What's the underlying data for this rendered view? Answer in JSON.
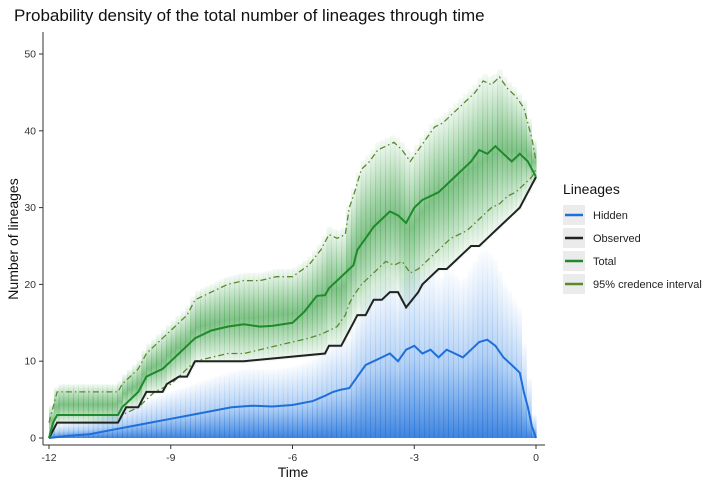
{
  "chart_data": {
    "type": "line",
    "title": "Probability density of the total number of lineages through time",
    "xlabel": "Time",
    "ylabel": "Number of lineages",
    "xlim": [
      -12,
      0
    ],
    "ylim": [
      0,
      50
    ],
    "x_ticks": [
      -12,
      -9,
      -6,
      -3,
      0
    ],
    "x_tick_labels": [
      "-12",
      "-9",
      "-6",
      "-3",
      "0"
    ],
    "y_ticks": [
      0,
      10,
      20,
      30,
      40,
      50
    ],
    "y_tick_labels": [
      "0",
      "10",
      "20",
      "30",
      "40",
      "50"
    ],
    "grid": false,
    "legend": {
      "title": "Lineages",
      "placement": "right",
      "entries": [
        "Hidden",
        "Observed",
        "Total",
        "95% credence interval"
      ]
    },
    "colors": {
      "Hidden": "#1e6fd9",
      "Observed": "#222222",
      "Total": "#1f8a2a",
      "95% credence interval": "#5a8a2e"
    },
    "series": [
      {
        "name": "Observed",
        "x": [
          -12,
          -11.9,
          -11.8,
          -10.3,
          -10.2,
          -10.1,
          -9.8,
          -9.7,
          -9.6,
          -9.2,
          -9.1,
          -8.8,
          -8.6,
          -8.5,
          -8.4,
          -7.2,
          -5.2,
          -5.1,
          -4.9,
          -4.8,
          -4.6,
          -4.5,
          -4.4,
          -4.2,
          -4.1,
          -4.0,
          -3.8,
          -3.6,
          -3.4,
          -3.2,
          -2.9,
          -2.8,
          -2.6,
          -2.4,
          -2.2,
          -2.0,
          -1.8,
          -1.6,
          -1.4,
          -1.2,
          -1.0,
          -0.8,
          -0.6,
          -0.4,
          -0.2,
          0
        ],
        "values": [
          0,
          1,
          2,
          2,
          3,
          4,
          4,
          5,
          6,
          6,
          7,
          8,
          8,
          9,
          10,
          10,
          11,
          12,
          12,
          12,
          14,
          15,
          16,
          16,
          17,
          18,
          18,
          19,
          19,
          17,
          19,
          20,
          21,
          22,
          22,
          23,
          24,
          25,
          25,
          26,
          27,
          28,
          29,
          30,
          32,
          34
        ]
      },
      {
        "name": "Hidden",
        "x": [
          -12,
          -11.5,
          -11,
          -10.5,
          -10,
          -9.5,
          -9,
          -8.5,
          -8,
          -7.5,
          -7,
          -6.5,
          -6,
          -5.5,
          -5.2,
          -5.0,
          -4.8,
          -4.6,
          -4.4,
          -4.2,
          -4.0,
          -3.8,
          -3.6,
          -3.4,
          -3.2,
          -3.0,
          -2.8,
          -2.6,
          -2.4,
          -2.2,
          -2.0,
          -1.8,
          -1.6,
          -1.4,
          -1.2,
          -1.0,
          -0.8,
          -0.6,
          -0.4,
          -0.3,
          -0.2,
          -0.1,
          0
        ],
        "values": [
          0,
          0.3,
          0.5,
          1.0,
          1.5,
          2.0,
          2.5,
          3.0,
          3.5,
          4.0,
          4.2,
          4.1,
          4.3,
          4.8,
          5.5,
          6.0,
          6.3,
          6.5,
          8.0,
          9.5,
          10.0,
          10.5,
          11.0,
          10.0,
          11.5,
          12.0,
          11.0,
          11.5,
          10.5,
          11.5,
          11.0,
          10.5,
          11.5,
          12.5,
          12.8,
          12.0,
          10.5,
          9.5,
          8.5,
          6.0,
          4.0,
          1.5,
          0
        ]
      },
      {
        "name": "Total",
        "x": [
          -12,
          -11.9,
          -11.8,
          -10.3,
          -10.2,
          -10.0,
          -9.8,
          -9.6,
          -9.4,
          -9.2,
          -9.0,
          -8.8,
          -8.6,
          -8.4,
          -8.0,
          -7.6,
          -7.2,
          -6.8,
          -6.5,
          -6.0,
          -5.7,
          -5.4,
          -5.2,
          -5.1,
          -4.9,
          -4.7,
          -4.5,
          -4.4,
          -4.2,
          -4.0,
          -3.8,
          -3.6,
          -3.4,
          -3.2,
          -3.0,
          -2.8,
          -2.6,
          -2.4,
          -2.2,
          -2.0,
          -1.8,
          -1.6,
          -1.4,
          -1.2,
          -1.0,
          -0.8,
          -0.6,
          -0.4,
          -0.2,
          -0.1,
          0
        ],
        "values": [
          0,
          2,
          3,
          3,
          4,
          5,
          6,
          8,
          8.5,
          9,
          10,
          11,
          12,
          13,
          14,
          14.5,
          14.8,
          14.5,
          14.6,
          15,
          16.5,
          18.5,
          18.6,
          19.5,
          20.5,
          21.5,
          22.5,
          24.5,
          26,
          27.5,
          28.5,
          29.5,
          29,
          28,
          30,
          31,
          31.5,
          32,
          33,
          34,
          35,
          36,
          37.5,
          37,
          38,
          37,
          36,
          37,
          36,
          35,
          34
        ]
      },
      {
        "name": "95% credence interval",
        "x": [
          -12,
          -11.9,
          -11.8,
          -10.3,
          -10.2,
          -10.0,
          -9.8,
          -9.6,
          -9.4,
          -9.2,
          -9.0,
          -8.8,
          -8.6,
          -8.4,
          -8.0,
          -7.6,
          -7.2,
          -6.8,
          -6.4,
          -6.0,
          -5.6,
          -5.3,
          -5.1,
          -4.9,
          -4.7,
          -4.6,
          -4.5,
          -4.3,
          -4.1,
          -3.9,
          -3.7,
          -3.5,
          -3.3,
          -3.1,
          -2.9,
          -2.7,
          -2.5,
          -2.3,
          -2.1,
          -1.9,
          -1.7,
          -1.5,
          -1.3,
          -1.1,
          -0.9,
          -0.7,
          -0.5,
          -0.3,
          -0.1,
          0
        ],
        "values": [
          2,
          4,
          6,
          6,
          7,
          8,
          9,
          11,
          12,
          13,
          14,
          15,
          16,
          18,
          19,
          20,
          20.5,
          20.5,
          21,
          21,
          22.5,
          24.5,
          26.5,
          26,
          26.5,
          30,
          31.5,
          35,
          36,
          37.5,
          38,
          38.5,
          37.5,
          36,
          37.5,
          39,
          40.5,
          41,
          42,
          43,
          44,
          45,
          46.5,
          46,
          47,
          45.5,
          44.5,
          43,
          39,
          36
        ]
      },
      {
        "name": "95% credence interval",
        "x": [
          -12,
          -11.9,
          -11.8,
          -10.3,
          -10.2,
          -10.0,
          -9.8,
          -9.6,
          -9.4,
          -9.2,
          -9.0,
          -8.8,
          -8.6,
          -8.4,
          -8.0,
          -7.6,
          -7.2,
          -6.8,
          -6.4,
          -6.0,
          -5.6,
          -5.3,
          -5.1,
          -4.9,
          -4.7,
          -4.6,
          -4.5,
          -4.3,
          -4.1,
          -3.9,
          -3.7,
          -3.5,
          -3.3,
          -3.1,
          -2.9,
          -2.7,
          -2.5,
          -2.3,
          -2.1,
          -1.9,
          -1.7,
          -1.5,
          -1.3,
          -1.1,
          -0.9,
          -0.7,
          -0.5,
          -0.3,
          -0.1,
          0
        ],
        "values": [
          0,
          1,
          2,
          2,
          3,
          3.5,
          4,
          5,
          6,
          6.5,
          7,
          8,
          9,
          10,
          10.5,
          11,
          11,
          11.5,
          12,
          12.5,
          13,
          13.5,
          14,
          14.5,
          16,
          17.5,
          18.5,
          20,
          21,
          22,
          23,
          22.5,
          23,
          21.5,
          22,
          23,
          24,
          25,
          26,
          26.5,
          27,
          28,
          29,
          30,
          30.5,
          31.5,
          32,
          33,
          34,
          35
        ]
      }
    ]
  }
}
